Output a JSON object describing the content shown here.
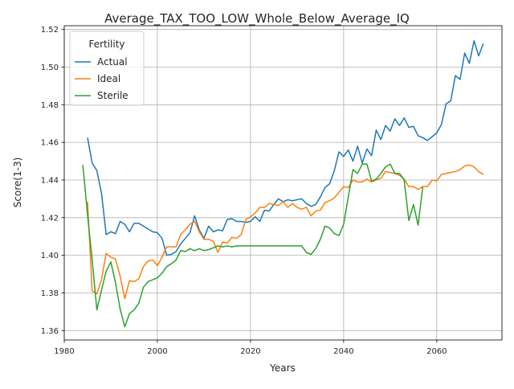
{
  "chart_data": {
    "type": "line",
    "title": "Average_TAX_TOO_LOW_Whole_Below_Average_IQ",
    "xlabel": "Years",
    "ylabel": "Score(1-3)",
    "xlim": [
      1980,
      2074
    ],
    "ylim": [
      1.355,
      1.522
    ],
    "x_ticks": [
      1980,
      2000,
      2020,
      2040,
      2060
    ],
    "y_ticks": [
      1.36,
      1.38,
      1.4,
      1.42,
      1.44,
      1.46,
      1.48,
      1.5,
      1.52
    ],
    "grid": true,
    "legend": {
      "title": "Fertility",
      "placement": "top-left"
    },
    "series": [
      {
        "name": "Actual",
        "color": "#1f77b4",
        "x": [
          1985,
          1986,
          1987,
          1988,
          1989,
          1990,
          1991,
          1992,
          1993,
          1994,
          1995,
          1996,
          1997,
          1998,
          1999,
          2000,
          2001,
          2002,
          2003,
          2004,
          2005,
          2006,
          2007,
          2008,
          2009,
          2010,
          2011,
          2012,
          2013,
          2014,
          2015,
          2016,
          2017,
          2018,
          2019,
          2020,
          2021,
          2022,
          2023,
          2024,
          2025,
          2026,
          2027,
          2028,
          2029,
          2030,
          2031,
          2032,
          2033,
          2034,
          2035,
          2036,
          2037,
          2038,
          2039,
          2040,
          2041,
          2042,
          2043,
          2044,
          2045,
          2046,
          2047,
          2048,
          2049,
          2050,
          2051,
          2052,
          2053,
          2054,
          2055,
          2056,
          2057,
          2058,
          2059,
          2060,
          2061,
          2062,
          2063,
          2064,
          2065,
          2066,
          2067,
          2068,
          2069,
          2070
        ],
        "values": [
          1.4625,
          1.449,
          1.445,
          1.433,
          1.411,
          1.4125,
          1.4115,
          1.418,
          1.4165,
          1.4125,
          1.417,
          1.417,
          1.4155,
          1.414,
          1.4125,
          1.412,
          1.409,
          1.4,
          1.4005,
          1.402,
          1.406,
          1.409,
          1.412,
          1.421,
          1.4135,
          1.409,
          1.4155,
          1.4125,
          1.4135,
          1.413,
          1.419,
          1.4195,
          1.418,
          1.418,
          1.4175,
          1.418,
          1.4205,
          1.418,
          1.424,
          1.4235,
          1.427,
          1.43,
          1.4285,
          1.4295,
          1.429,
          1.4295,
          1.43,
          1.4275,
          1.426,
          1.427,
          1.431,
          1.436,
          1.438,
          1.445,
          1.455,
          1.4525,
          1.456,
          1.45,
          1.458,
          1.449,
          1.4565,
          1.453,
          1.4665,
          1.4615,
          1.469,
          1.466,
          1.4725,
          1.469,
          1.473,
          1.468,
          1.4685,
          1.4635,
          1.4625,
          1.461,
          1.463,
          1.465,
          1.4695,
          1.4805,
          1.482,
          1.4955,
          1.4935,
          1.5075,
          1.502,
          1.514,
          1.506,
          1.5125
        ]
      },
      {
        "name": "Ideal",
        "color": "#ff7f0e",
        "x": [
          1985,
          1986,
          1987,
          1988,
          1989,
          1990,
          1991,
          1992,
          1993,
          1994,
          1995,
          1996,
          1997,
          1998,
          1999,
          2000,
          2001,
          2002,
          2003,
          2004,
          2005,
          2006,
          2007,
          2008,
          2009,
          2010,
          2011,
          2012,
          2013,
          2014,
          2015,
          2016,
          2017,
          2018,
          2019,
          2020,
          2021,
          2022,
          2023,
          2024,
          2025,
          2026,
          2027,
          2028,
          2029,
          2030,
          2031,
          2032,
          2033,
          2034,
          2035,
          2036,
          2037,
          2038,
          2039,
          2040,
          2041,
          2042,
          2043,
          2044,
          2045,
          2046,
          2047,
          2048,
          2049,
          2050,
          2051,
          2052,
          2053,
          2054,
          2055,
          2056,
          2057,
          2058,
          2059,
          2060,
          2061,
          2062,
          2063,
          2064,
          2065,
          2066,
          2067,
          2068,
          2069,
          2070
        ],
        "values": [
          1.4285,
          1.381,
          1.3795,
          1.387,
          1.401,
          1.399,
          1.398,
          1.389,
          1.377,
          1.3865,
          1.386,
          1.3875,
          1.394,
          1.397,
          1.3975,
          1.3945,
          1.399,
          1.4045,
          1.4045,
          1.4045,
          1.411,
          1.4135,
          1.4165,
          1.418,
          1.4125,
          1.4085,
          1.4085,
          1.4075,
          1.4015,
          1.407,
          1.4065,
          1.4095,
          1.409,
          1.411,
          1.419,
          1.4205,
          1.4225,
          1.4255,
          1.4255,
          1.4275,
          1.427,
          1.4265,
          1.4285,
          1.4255,
          1.4275,
          1.4255,
          1.4245,
          1.4255,
          1.421,
          1.4235,
          1.424,
          1.428,
          1.429,
          1.4305,
          1.4335,
          1.4365,
          1.436,
          1.44,
          1.439,
          1.439,
          1.4405,
          1.439,
          1.44,
          1.441,
          1.4445,
          1.444,
          1.4435,
          1.4425,
          1.4405,
          1.4365,
          1.4365,
          1.435,
          1.4365,
          1.4365,
          1.44,
          1.4395,
          1.443,
          1.4435,
          1.444,
          1.4445,
          1.4455,
          1.4475,
          1.448,
          1.447,
          1.4445,
          1.443
        ]
      },
      {
        "name": "Sterile",
        "color": "#2ca02c",
        "x": [
          1984,
          1985,
          1986,
          1987,
          1988,
          1989,
          1990,
          1991,
          1992,
          1993,
          1994,
          1995,
          1996,
          1997,
          1998,
          1999,
          2000,
          2001,
          2002,
          2003,
          2004,
          2005,
          2006,
          2007,
          2008,
          2009,
          2010,
          2011,
          2012,
          2013,
          2014,
          2015,
          2016,
          2017,
          2018,
          2019,
          2020,
          2021,
          2022,
          2023,
          2024,
          2025,
          2026,
          2027,
          2028,
          2029,
          2030,
          2031,
          2032,
          2033,
          2034,
          2035,
          2036,
          2037,
          2038,
          2039,
          2040,
          2041,
          2042,
          2043,
          2044,
          2045,
          2046,
          2047,
          2048,
          2049,
          2050,
          2051,
          2052,
          2053,
          2054,
          2055,
          2056,
          2057
        ],
        "values": [
          1.448,
          1.4215,
          1.3975,
          1.371,
          1.3815,
          1.3915,
          1.3965,
          1.3855,
          1.3715,
          1.362,
          1.369,
          1.371,
          1.3745,
          1.383,
          1.386,
          1.387,
          1.388,
          1.3905,
          1.394,
          1.3955,
          1.3975,
          1.4025,
          1.402,
          1.4035,
          1.4025,
          1.4035,
          1.4025,
          1.403,
          1.404,
          1.405,
          1.4045,
          1.405,
          1.4045,
          1.405,
          1.405,
          1.405,
          1.405,
          1.405,
          1.405,
          1.405,
          1.405,
          1.405,
          1.405,
          1.405,
          1.405,
          1.405,
          1.405,
          1.405,
          1.4015,
          1.4005,
          1.4035,
          1.4085,
          1.4155,
          1.4145,
          1.4115,
          1.4105,
          1.4165,
          1.431,
          1.4455,
          1.4435,
          1.4485,
          1.4485,
          1.4395,
          1.4405,
          1.4435,
          1.447,
          1.4485,
          1.4435,
          1.4435,
          1.44,
          1.4185,
          1.427,
          1.416,
          1.4365
        ]
      }
    ]
  }
}
